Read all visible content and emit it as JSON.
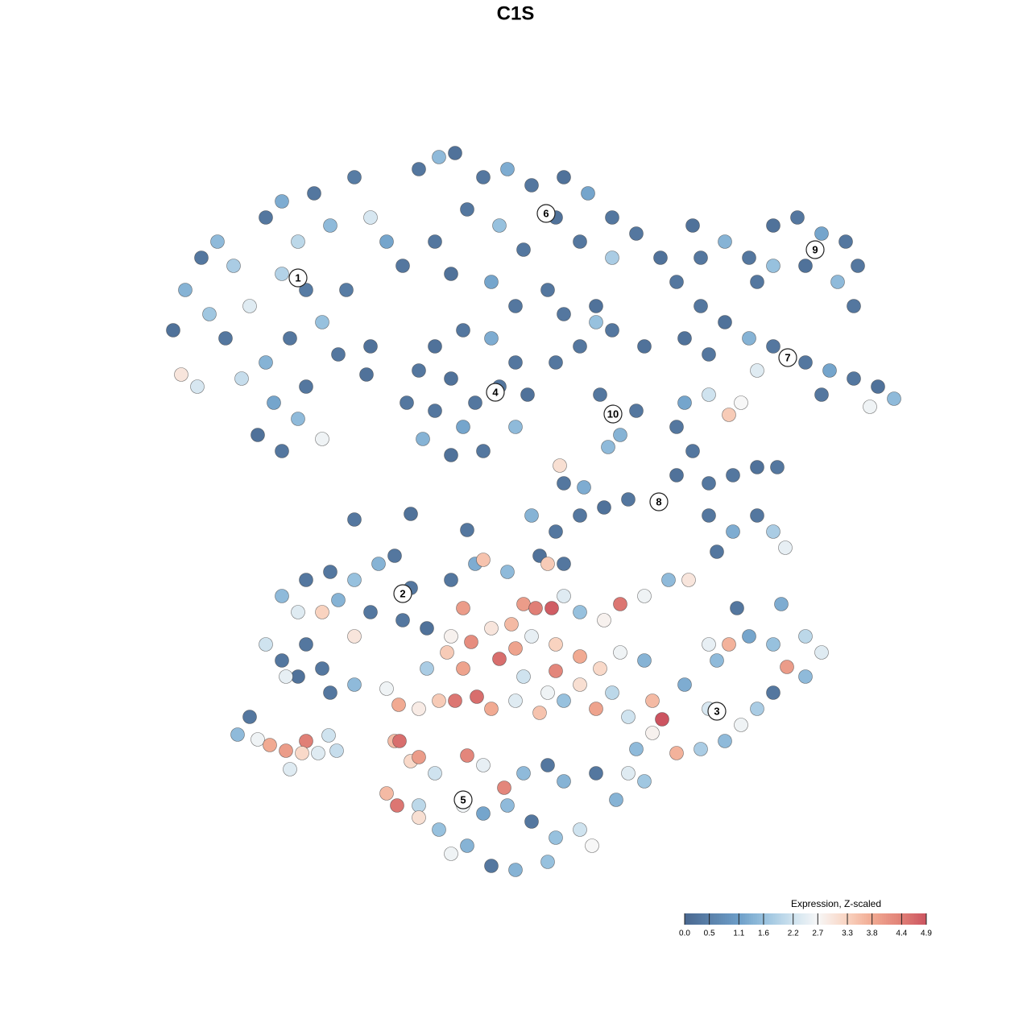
{
  "chart_data": {
    "type": "scatter",
    "title": "C1S",
    "xlim": [
      0,
      930
    ],
    "ylim": [
      0,
      910
    ],
    "colorbar_title": "Expression, Z-scaled",
    "colorbar_ticks": [
      {
        "value": 0,
        "label": "0.0"
      },
      0.5,
      1.1,
      1.6,
      2.2,
      2.7,
      3.3,
      3.8,
      4.4,
      4.9
    ],
    "colorscale": [
      [
        0,
        "#4a6890"
      ],
      [
        1.1,
        "#6d9ec8"
      ],
      [
        1.6,
        "#97c1de"
      ],
      [
        2.2,
        "#cfe3ef"
      ],
      [
        2.7,
        "#f7f7f7"
      ],
      [
        3.3,
        "#f9d3c0"
      ],
      [
        3.8,
        "#f1aa92"
      ],
      [
        4.4,
        "#e07f76"
      ],
      [
        4.9,
        "#cc5460"
      ]
    ],
    "points": [
      [
        15,
        685,
        0.2
      ],
      [
        30,
        735,
        1.4
      ],
      [
        50,
        775,
        0.3
      ],
      [
        70,
        795,
        1.5
      ],
      [
        90,
        765,
        1.8
      ],
      [
        110,
        715,
        2.4
      ],
      [
        130,
        825,
        0.3
      ],
      [
        150,
        845,
        1.3
      ],
      [
        170,
        795,
        2.0
      ],
      [
        190,
        855,
        0.3
      ],
      [
        210,
        815,
        1.5
      ],
      [
        240,
        875,
        0.4
      ],
      [
        260,
        825,
        2.3
      ],
      [
        280,
        795,
        1.2
      ],
      [
        300,
        765,
        0.3
      ],
      [
        230,
        735,
        0.4
      ],
      [
        200,
        695,
        1.6
      ],
      [
        160,
        675,
        0.3
      ],
      [
        130,
        645,
        1.4
      ],
      [
        100,
        625,
        2.1
      ],
      [
        80,
        675,
        0.3
      ],
      [
        60,
        705,
        1.7
      ],
      [
        120,
        555,
        0.2
      ],
      [
        150,
        535,
        0.3
      ],
      [
        170,
        575,
        1.5
      ],
      [
        200,
        550,
        2.6
      ],
      [
        180,
        615,
        0.3
      ],
      [
        140,
        595,
        1.2
      ],
      [
        25,
        630,
        3.0
      ],
      [
        45,
        615,
        2.3
      ],
      [
        220,
        655,
        0.3
      ],
      [
        260,
        665,
        0.2
      ],
      [
        255,
        630,
        0.2
      ],
      [
        150,
        755,
        1.9
      ],
      [
        180,
        735,
        0.4
      ],
      [
        320,
        885,
        0.3
      ],
      [
        345,
        900,
        1.5
      ],
      [
        365,
        905,
        0.2
      ],
      [
        400,
        875,
        0.3
      ],
      [
        430,
        885,
        1.3
      ],
      [
        460,
        865,
        0.3
      ],
      [
        500,
        875,
        0.2
      ],
      [
        530,
        855,
        1.2
      ],
      [
        560,
        825,
        0.3
      ],
      [
        590,
        805,
        0.3
      ],
      [
        620,
        775,
        0.2
      ],
      [
        380,
        835,
        0.3
      ],
      [
        420,
        815,
        1.6
      ],
      [
        450,
        785,
        0.3
      ],
      [
        490,
        825,
        0.2
      ],
      [
        520,
        795,
        0.3
      ],
      [
        560,
        775,
        1.8
      ],
      [
        340,
        795,
        0.3
      ],
      [
        360,
        755,
        0.2
      ],
      [
        410,
        745,
        1.2
      ],
      [
        480,
        735,
        0.3
      ],
      [
        500,
        705,
        0.3
      ],
      [
        540,
        715,
        0.2
      ],
      [
        440,
        715,
        0.3
      ],
      [
        660,
        815,
        0.2
      ],
      [
        640,
        745,
        0.3
      ],
      [
        320,
        635,
        0.3
      ],
      [
        340,
        665,
        0.2
      ],
      [
        375,
        685,
        0.3
      ],
      [
        410,
        675,
        1.3
      ],
      [
        440,
        645,
        0.3
      ],
      [
        455,
        605,
        0.2
      ],
      [
        440,
        565,
        1.5
      ],
      [
        400,
        535,
        0.3
      ],
      [
        360,
        530,
        0.2
      ],
      [
        325,
        550,
        1.4
      ],
      [
        305,
        595,
        0.3
      ],
      [
        360,
        625,
        0.2
      ],
      [
        390,
        595,
        0.3
      ],
      [
        375,
        565,
        1.2
      ],
      [
        420,
        615,
        0.3
      ],
      [
        340,
        585,
        0.3
      ],
      [
        490,
        645,
        0.3
      ],
      [
        520,
        665,
        0.3
      ],
      [
        560,
        685,
        0.3
      ],
      [
        600,
        665,
        0.2
      ],
      [
        545,
        605,
        0.3
      ],
      [
        570,
        555,
        1.4
      ],
      [
        590,
        585,
        0.3
      ],
      [
        555,
        540,
        1.5
      ],
      [
        540,
        695,
        1.6
      ],
      [
        670,
        775,
        0.3
      ],
      [
        700,
        795,
        1.4
      ],
      [
        730,
        775,
        0.3
      ],
      [
        760,
        815,
        0.2
      ],
      [
        790,
        825,
        0.3
      ],
      [
        820,
        805,
        1.2
      ],
      [
        850,
        795,
        0.3
      ],
      [
        865,
        765,
        0.3
      ],
      [
        840,
        745,
        1.5
      ],
      [
        800,
        765,
        0.2
      ],
      [
        760,
        765,
        1.6
      ],
      [
        740,
        745,
        0.3
      ],
      [
        860,
        715,
        0.3
      ],
      [
        670,
        715,
        0.3
      ],
      [
        700,
        695,
        0.2
      ],
      [
        730,
        675,
        1.4
      ],
      [
        760,
        665,
        0.3
      ],
      [
        800,
        645,
        0.3
      ],
      [
        830,
        635,
        1.2
      ],
      [
        860,
        625,
        0.3
      ],
      [
        890,
        615,
        0.2
      ],
      [
        910,
        600,
        1.5
      ],
      [
        820,
        605,
        0.3
      ],
      [
        680,
        655,
        0.3
      ],
      [
        650,
        675,
        0.2
      ],
      [
        740,
        635,
        2.4
      ],
      [
        880,
        590,
        2.6
      ],
      [
        650,
        595,
        1.2
      ],
      [
        680,
        605,
        2.2
      ],
      [
        720,
        595,
        2.7
      ],
      [
        705,
        580,
        3.4
      ],
      [
        640,
        565,
        0.3
      ],
      [
        660,
        535,
        0.3
      ],
      [
        640,
        505,
        0.2
      ],
      [
        680,
        495,
        0.3
      ],
      [
        710,
        505,
        0.3
      ],
      [
        740,
        515,
        0.2
      ],
      [
        765,
        515,
        0.3
      ],
      [
        680,
        455,
        0.3
      ],
      [
        710,
        435,
        1.3
      ],
      [
        740,
        455,
        0.3
      ],
      [
        760,
        435,
        1.8
      ],
      [
        775,
        415,
        2.5
      ],
      [
        690,
        410,
        0.3
      ],
      [
        580,
        475,
        0.3
      ],
      [
        550,
        465,
        0.2
      ],
      [
        520,
        455,
        0.3
      ],
      [
        490,
        435,
        0.3
      ],
      [
        470,
        405,
        0.2
      ],
      [
        500,
        395,
        0.3
      ],
      [
        525,
        490,
        1.3
      ],
      [
        500,
        495,
        0.3
      ],
      [
        495,
        517,
        3.1
      ],
      [
        240,
        450,
        0.3
      ],
      [
        310,
        457,
        0.2
      ],
      [
        380,
        437,
        0.3
      ],
      [
        460,
        455,
        1.4
      ],
      [
        150,
        355,
        1.5
      ],
      [
        180,
        375,
        0.3
      ],
      [
        210,
        385,
        0.3
      ],
      [
        240,
        375,
        1.6
      ],
      [
        270,
        395,
        1.4
      ],
      [
        290,
        405,
        0.3
      ],
      [
        310,
        365,
        0.3
      ],
      [
        200,
        335,
        3.3
      ],
      [
        170,
        335,
        2.4
      ],
      [
        220,
        350,
        1.4
      ],
      [
        260,
        335,
        0.3
      ],
      [
        300,
        325,
        0.3
      ],
      [
        330,
        315,
        0.2
      ],
      [
        130,
        295,
        2.2
      ],
      [
        150,
        275,
        0.3
      ],
      [
        180,
        295,
        0.3
      ],
      [
        200,
        265,
        0.3
      ],
      [
        170,
        255,
        0.2
      ],
      [
        210,
        235,
        0.3
      ],
      [
        240,
        305,
        3.0
      ],
      [
        155,
        255,
        2.5
      ],
      [
        240,
        245,
        1.5
      ],
      [
        280,
        240,
        2.6
      ],
      [
        360,
        375,
        0.3
      ],
      [
        390,
        395,
        1.3
      ],
      [
        400,
        400,
        3.5
      ],
      [
        430,
        385,
        1.5
      ],
      [
        450,
        345,
        4.0
      ],
      [
        465,
        340,
        4.4
      ],
      [
        485,
        340,
        4.8
      ],
      [
        480,
        395,
        3.4
      ],
      [
        500,
        355,
        2.4
      ],
      [
        520,
        335,
        1.6
      ],
      [
        550,
        325,
        2.8
      ],
      [
        570,
        345,
        4.5
      ],
      [
        600,
        355,
        2.6
      ],
      [
        630,
        375,
        1.5
      ],
      [
        655,
        375,
        3.0
      ],
      [
        375,
        340,
        4.0
      ],
      [
        360,
        305,
        2.8
      ],
      [
        385,
        298,
        4.2
      ],
      [
        410,
        315,
        3.0
      ],
      [
        435,
        320,
        3.6
      ],
      [
        460,
        305,
        2.5
      ],
      [
        490,
        295,
        3.3
      ],
      [
        520,
        280,
        3.8
      ],
      [
        545,
        265,
        3.2
      ],
      [
        570,
        285,
        2.6
      ],
      [
        600,
        275,
        1.4
      ],
      [
        330,
        265,
        1.8
      ],
      [
        355,
        285,
        3.4
      ],
      [
        375,
        265,
        3.9
      ],
      [
        420,
        277,
        4.6
      ],
      [
        440,
        290,
        3.9
      ],
      [
        490,
        262,
        4.3
      ],
      [
        450,
        255,
        2.2
      ],
      [
        480,
        235,
        2.6
      ],
      [
        520,
        245,
        3.1
      ],
      [
        560,
        235,
        2.0
      ],
      [
        295,
        220,
        3.8
      ],
      [
        320,
        215,
        2.9
      ],
      [
        345,
        225,
        3.4
      ],
      [
        365,
        225,
        4.5
      ],
      [
        392,
        230,
        4.6
      ],
      [
        410,
        215,
        3.8
      ],
      [
        440,
        225,
        2.4
      ],
      [
        470,
        210,
        3.5
      ],
      [
        500,
        225,
        1.6
      ],
      [
        540,
        215,
        3.9
      ],
      [
        580,
        205,
        2.2
      ],
      [
        622,
        202,
        4.9
      ],
      [
        610,
        225,
        3.6
      ],
      [
        650,
        245,
        1.3
      ],
      [
        680,
        215,
        2.3
      ],
      [
        690,
        275,
        1.5
      ],
      [
        705,
        295,
        3.7
      ],
      [
        730,
        305,
        1.2
      ],
      [
        760,
        295,
        1.6
      ],
      [
        777,
        267,
        4.0
      ],
      [
        800,
        305,
        2.0
      ],
      [
        820,
        285,
        2.4
      ],
      [
        800,
        255,
        1.5
      ],
      [
        760,
        235,
        0.3
      ],
      [
        740,
        215,
        1.8
      ],
      [
        720,
        195,
        2.6
      ],
      [
        700,
        175,
        1.5
      ],
      [
        670,
        165,
        1.8
      ],
      [
        640,
        160,
        3.7
      ],
      [
        610,
        185,
        2.8
      ],
      [
        590,
        165,
        1.5
      ],
      [
        580,
        135,
        2.4
      ],
      [
        600,
        125,
        1.7
      ],
      [
        770,
        345,
        1.3
      ],
      [
        715,
        340,
        0.3
      ],
      [
        680,
        295,
        2.5
      ],
      [
        290,
        175,
        3.6
      ],
      [
        310,
        150,
        3.2
      ],
      [
        296,
        175,
        4.6
      ],
      [
        280,
        110,
        3.6
      ],
      [
        293,
        95,
        4.5
      ],
      [
        320,
        155,
        4.0
      ],
      [
        340,
        135,
        2.2
      ],
      [
        380,
        157,
        4.3
      ],
      [
        400,
        145,
        2.5
      ],
      [
        426,
        117,
        4.3
      ],
      [
        450,
        135,
        1.5
      ],
      [
        480,
        145,
        0.3
      ],
      [
        500,
        125,
        1.4
      ],
      [
        540,
        135,
        0.3
      ],
      [
        320,
        95,
        2.0
      ],
      [
        345,
        65,
        1.6
      ],
      [
        375,
        95,
        2.6
      ],
      [
        400,
        85,
        1.2
      ],
      [
        430,
        95,
        1.5
      ],
      [
        460,
        75,
        0.3
      ],
      [
        490,
        55,
        1.6
      ],
      [
        520,
        65,
        2.2
      ],
      [
        380,
        45,
        1.4
      ],
      [
        410,
        20,
        0.3
      ],
      [
        440,
        15,
        1.4
      ],
      [
        480,
        25,
        1.6
      ],
      [
        360,
        35,
        2.6
      ],
      [
        320,
        80,
        3.1
      ],
      [
        535,
        45,
        2.7
      ],
      [
        565,
        102,
        1.4
      ],
      [
        95,
        183,
        1.5
      ],
      [
        110,
        205,
        0.3
      ],
      [
        120,
        177,
        2.6
      ],
      [
        135,
        170,
        3.8
      ],
      [
        155,
        163,
        4.0
      ],
      [
        180,
        175,
        4.4
      ],
      [
        175,
        160,
        3.2
      ],
      [
        160,
        140,
        2.4
      ],
      [
        195,
        160,
        2.4
      ],
      [
        208,
        182,
        2.2
      ],
      [
        218,
        163,
        2.1
      ]
    ],
    "cluster_labels": [
      {
        "label": "1",
        "x": 170,
        "y": 750
      },
      {
        "label": "2",
        "x": 300,
        "y": 358
      },
      {
        "label": "3",
        "x": 690,
        "y": 212
      },
      {
        "label": "4",
        "x": 415,
        "y": 608
      },
      {
        "label": "5",
        "x": 375,
        "y": 102
      },
      {
        "label": "6",
        "x": 478,
        "y": 830
      },
      {
        "label": "7",
        "x": 778,
        "y": 651
      },
      {
        "label": "8",
        "x": 618,
        "y": 472
      },
      {
        "label": "9",
        "x": 812,
        "y": 785
      },
      {
        "label": "10",
        "x": 561,
        "y": 581
      }
    ]
  }
}
